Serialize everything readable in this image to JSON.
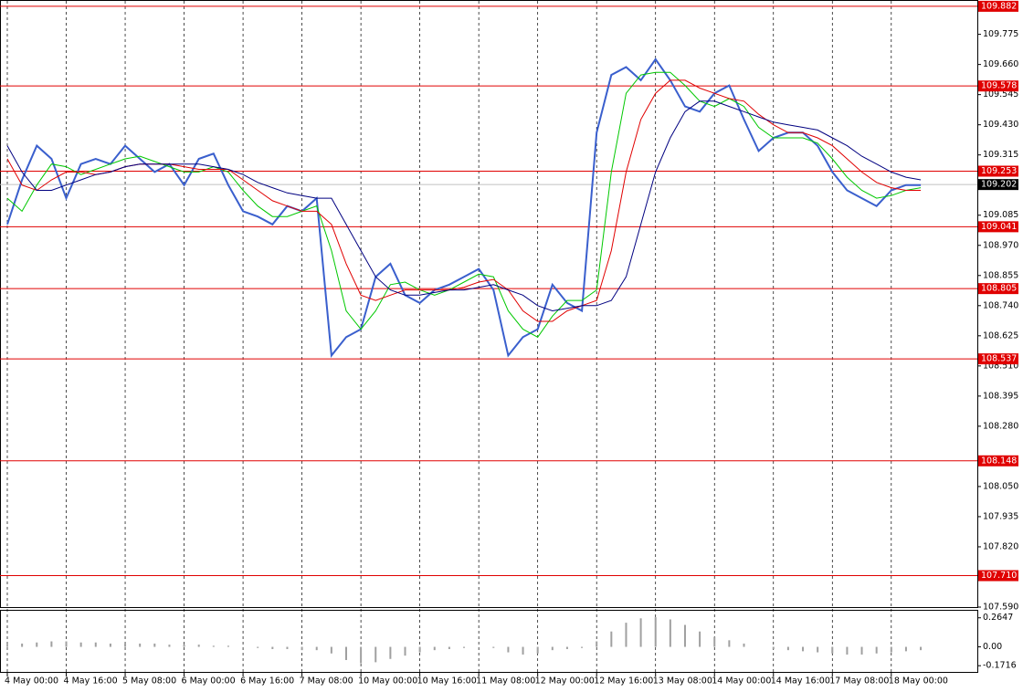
{
  "chart_data": [
    {
      "type": "line",
      "categories": [
        "4 May 00:00",
        null,
        null,
        null,
        "4 May 16:00",
        null,
        null,
        null,
        "5 May 08:00",
        null,
        null,
        null,
        "6 May 00:00",
        null,
        null,
        null,
        "6 May 16:00",
        null,
        null,
        null,
        "7 May 08:00",
        null,
        null,
        null,
        "10 May 00:00",
        null,
        null,
        null,
        "10 May 16:00",
        null,
        null,
        null,
        "11 May 08:00",
        null,
        null,
        null,
        "12 May 00:00",
        null,
        null,
        null,
        "12 May 16:00",
        null,
        null,
        null,
        "13 May 08:00",
        null,
        null,
        null,
        "14 May 00:00",
        null,
        null,
        null,
        "14 May 16:00",
        null,
        null,
        null,
        "17 May 08:00",
        null,
        null,
        null,
        "18 May 00:00",
        null,
        null
      ],
      "series": [
        {
          "color": "#3a5fcd",
          "values": [
            109.05,
            109.22,
            109.35,
            109.3,
            109.15,
            109.28,
            109.3,
            109.28,
            109.35,
            109.3,
            109.25,
            109.28,
            109.2,
            109.3,
            109.32,
            109.2,
            109.1,
            109.08,
            109.05,
            109.12,
            109.1,
            109.15,
            108.55,
            108.62,
            108.65,
            108.85,
            108.9,
            108.78,
            108.75,
            108.8,
            108.82,
            108.85,
            108.88,
            108.8,
            108.55,
            108.62,
            108.65,
            108.82,
            108.75,
            108.72,
            109.4,
            109.62,
            109.65,
            109.6,
            109.68,
            109.6,
            109.5,
            109.48,
            109.55,
            109.58,
            109.45,
            109.33,
            109.38,
            109.4,
            109.4,
            109.35,
            109.25,
            109.18,
            109.15,
            109.12,
            109.18,
            109.2,
            109.2
          ]
        },
        {
          "color": "#00c800",
          "values": [
            109.15,
            109.1,
            109.2,
            109.28,
            109.27,
            109.24,
            109.26,
            109.28,
            109.3,
            109.31,
            109.29,
            109.27,
            109.25,
            109.25,
            109.27,
            109.25,
            109.18,
            109.12,
            109.08,
            109.08,
            109.1,
            109.12,
            108.95,
            108.72,
            108.65,
            108.72,
            108.82,
            108.83,
            108.8,
            108.78,
            108.8,
            108.83,
            108.86,
            108.85,
            108.72,
            108.65,
            108.62,
            108.7,
            108.76,
            108.76,
            108.8,
            109.25,
            109.55,
            109.62,
            109.63,
            109.63,
            109.58,
            109.52,
            109.5,
            109.53,
            109.5,
            109.42,
            109.38,
            109.38,
            109.38,
            109.36,
            109.3,
            109.23,
            109.18,
            109.15,
            109.16,
            109.18,
            109.19
          ]
        },
        {
          "color": "#e00000",
          "values": [
            109.3,
            109.2,
            109.18,
            109.22,
            109.25,
            109.25,
            109.24,
            109.25,
            109.27,
            109.28,
            109.28,
            109.28,
            109.27,
            109.26,
            109.26,
            109.26,
            109.22,
            109.18,
            109.14,
            109.12,
            109.1,
            109.1,
            109.05,
            108.9,
            108.78,
            108.76,
            108.78,
            108.8,
            108.8,
            108.8,
            108.8,
            108.81,
            108.83,
            108.84,
            108.8,
            108.72,
            108.68,
            108.68,
            108.72,
            108.74,
            108.76,
            108.95,
            109.25,
            109.45,
            109.55,
            109.6,
            109.6,
            109.57,
            109.55,
            109.53,
            109.52,
            109.47,
            109.43,
            109.4,
            109.4,
            109.38,
            109.35,
            109.3,
            109.25,
            109.21,
            109.19,
            109.18,
            109.18
          ]
        },
        {
          "color": "#000080",
          "values": [
            109.35,
            109.25,
            109.18,
            109.18,
            109.2,
            109.22,
            109.24,
            109.25,
            109.27,
            109.28,
            109.28,
            109.28,
            109.28,
            109.28,
            109.27,
            109.26,
            109.24,
            109.21,
            109.19,
            109.17,
            109.16,
            109.15,
            109.15,
            109.05,
            108.95,
            108.85,
            108.8,
            108.78,
            108.78,
            108.79,
            108.8,
            108.8,
            108.81,
            108.82,
            108.8,
            108.78,
            108.74,
            108.72,
            108.73,
            108.74,
            108.74,
            108.76,
            108.85,
            109.05,
            109.25,
            109.38,
            109.48,
            109.52,
            109.52,
            109.5,
            109.48,
            109.46,
            109.44,
            109.43,
            109.42,
            109.41,
            109.38,
            109.35,
            109.31,
            109.28,
            109.25,
            109.23,
            109.22
          ]
        }
      ],
      "ylim": [
        107.59,
        109.906
      ],
      "yticks": [
        109.775,
        {
          "value": 109.66,
          "label": "109.660"
        },
        109.545,
        {
          "value": 109.43,
          "label": "109.430"
        },
        109.315,
        109.085,
        {
          "value": 108.97,
          "label": "108.970"
        },
        108.855,
        {
          "value": 108.74,
          "label": "108.740"
        },
        108.625,
        {
          "value": 108.51,
          "label": "108.510"
        },
        108.395,
        {
          "value": 108.28,
          "label": "108.280"
        },
        {
          "value": 108.05,
          "label": "108.050"
        },
        107.935,
        {
          "value": 107.82,
          "label": "107.820"
        },
        {
          "value": 107.59,
          "label": "107.590"
        }
      ],
      "levels": [
        109.882,
        109.578,
        109.253,
        109.041,
        108.805,
        108.537,
        108.148,
        {
          "value": 107.71,
          "label": "107.710"
        }
      ],
      "level_color": "#e00000",
      "current_price": 109.202,
      "grid": true
    },
    {
      "type": "bar",
      "values": [
        0.02,
        0.03,
        0.04,
        0.05,
        0.05,
        0.04,
        0.04,
        0.03,
        0.03,
        0.03,
        0.03,
        0.02,
        0.02,
        0.02,
        0.01,
        0.01,
        0.0,
        -0.01,
        -0.02,
        -0.02,
        -0.03,
        -0.03,
        -0.06,
        -0.12,
        -0.15,
        -0.14,
        -0.11,
        -0.08,
        -0.05,
        -0.03,
        -0.02,
        -0.01,
        0.0,
        -0.01,
        -0.05,
        -0.07,
        -0.06,
        -0.03,
        -0.02,
        -0.01,
        0.05,
        0.14,
        0.22,
        0.26,
        0.27,
        0.25,
        0.2,
        0.14,
        0.09,
        0.06,
        0.03,
        0.0,
        -0.02,
        -0.03,
        -0.04,
        -0.05,
        -0.06,
        -0.07,
        -0.07,
        -0.06,
        -0.05,
        -0.04,
        -0.03
      ],
      "color": "#a0a0a0",
      "ylim": [
        -0.22,
        0.3207
      ],
      "yticks": [
        0.2647,
        {
          "value": 0,
          "label": "0.00"
        },
        -0.1716
      ]
    }
  ]
}
